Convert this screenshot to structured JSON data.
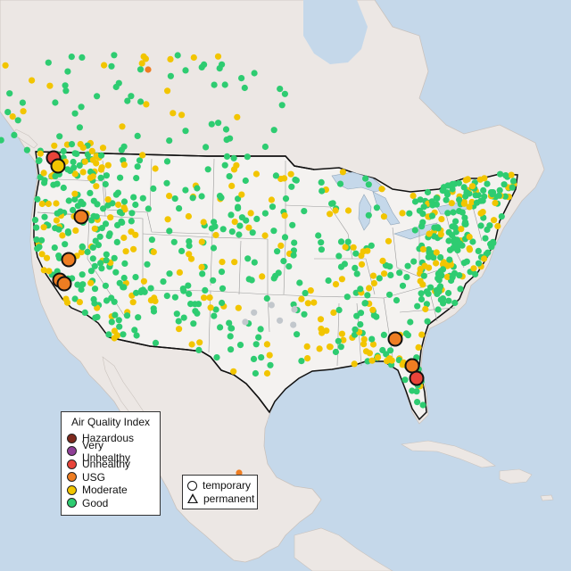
{
  "legend": {
    "title": "Air Quality Index",
    "items": [
      {
        "label": "Hazardous",
        "color": "#7e2a1d"
      },
      {
        "label": "Very Unhealthy",
        "color": "#8f3f97"
      },
      {
        "label": "Unhealthy",
        "color": "#e8443a"
      },
      {
        "label": "USG",
        "color": "#ee7d22"
      },
      {
        "label": "Moderate",
        "color": "#f2c500"
      },
      {
        "label": "Good",
        "color": "#2ecc71"
      }
    ]
  },
  "monitor_types": {
    "temporary": "temporary",
    "permanent": "permanent"
  },
  "colors": {
    "ocean": "#c5d8ea",
    "land": "#ece7e4",
    "us_land": "#f4f2f0",
    "grey_station": "#c2c7cc"
  },
  "map_data": {
    "large_markers": [
      {
        "lon": -122.0,
        "lat": 48.7,
        "category": "Unhealthy"
      },
      {
        "lon": -121.5,
        "lat": 48.1,
        "category": "Moderate"
      },
      {
        "lon": -119.6,
        "lat": 44.1,
        "category": "USG"
      },
      {
        "lon": -120.4,
        "lat": 40.9,
        "category": "USG"
      },
      {
        "lon": -121.4,
        "lat": 39.8,
        "category": "USG"
      },
      {
        "lon": -121.0,
        "lat": 39.4,
        "category": "USG"
      },
      {
        "lon": -83.5,
        "lat": 32.5,
        "category": "USG"
      },
      {
        "lon": -81.6,
        "lat": 30.4,
        "category": "USG"
      },
      {
        "lon": -81.3,
        "lat": 29.6,
        "category": "Unhealthy"
      }
    ]
  }
}
